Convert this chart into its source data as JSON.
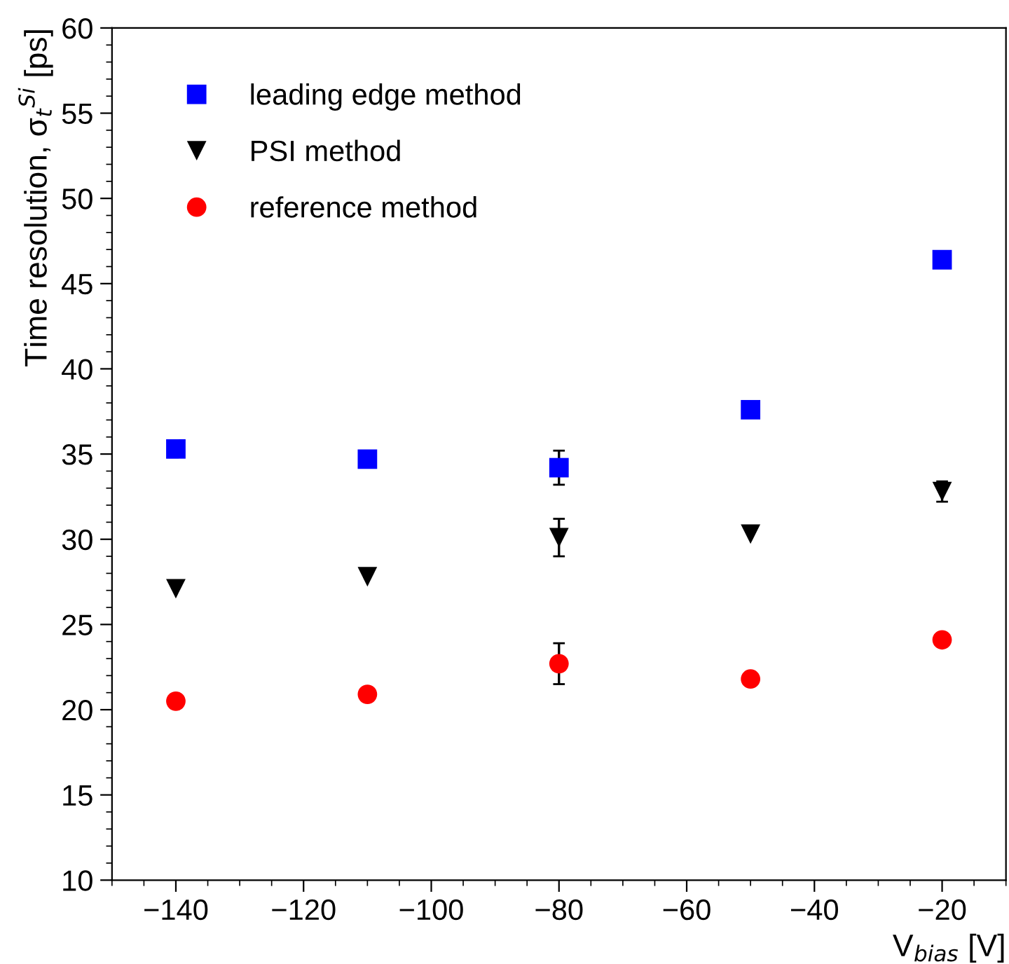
{
  "chart_data": {
    "type": "scatter",
    "xlabel": "V$_{bias}$ [V]",
    "ylabel": "Time resolution, σ$_{t}$$^{Si}$ [ps]",
    "x": [
      -140,
      -110,
      -80,
      -50,
      -20
    ],
    "series": [
      {
        "name": "leading edge method",
        "color": "#0000ff",
        "marker": "square",
        "values": [
          35.3,
          34.7,
          34.2,
          37.6,
          46.4
        ],
        "errors": [
          null,
          null,
          1.0,
          null,
          null
        ]
      },
      {
        "name": "PSI method",
        "color": "#000000",
        "marker": "triangle",
        "values": [
          27.1,
          27.8,
          30.1,
          30.3,
          32.8
        ],
        "errors": [
          null,
          null,
          1.1,
          null,
          0.6
        ]
      },
      {
        "name": "reference method",
        "color": "#ff0000",
        "marker": "circle",
        "values": [
          20.5,
          20.9,
          22.7,
          21.8,
          24.1
        ],
        "errors": [
          null,
          null,
          1.2,
          null,
          null
        ]
      }
    ],
    "xlim": [
      -150,
      -10
    ],
    "xticks": [
      {
        "value": -140,
        "label": "−140"
      },
      {
        "value": -120,
        "label": "−120"
      },
      {
        "value": -100,
        "label": "−100"
      },
      {
        "value": -80,
        "label": "−80"
      },
      {
        "value": -60,
        "label": "−60"
      },
      {
        "value": -40,
        "label": "−40"
      },
      {
        "value": -20,
        "label": "−20"
      }
    ],
    "ylim": [
      10,
      60
    ],
    "yticks": [
      10,
      15,
      20,
      25,
      30,
      35,
      40,
      45,
      50,
      55,
      60
    ],
    "grid": false,
    "legend": "top left"
  }
}
